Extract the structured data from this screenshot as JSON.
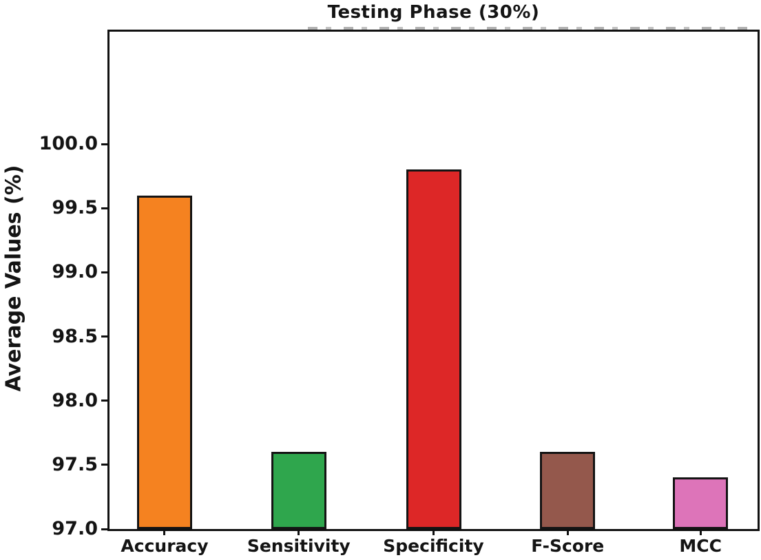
{
  "chart_data": {
    "type": "bar",
    "title": "Testing Phase (30%)",
    "ylabel": "Average Values (%)",
    "xlabel": "",
    "categories": [
      "Accuracy",
      "Sensitivity",
      "Specificity",
      "F-Score",
      "MCC"
    ],
    "values": [
      99.6,
      97.6,
      99.8,
      97.6,
      97.4
    ],
    "bar_colors": [
      "#F58220",
      "#2FA64D",
      "#DD2727",
      "#94584C",
      "#DD74B9"
    ],
    "bar_edge_color": "#141414",
    "ylim": [
      97.0,
      100.875
    ],
    "yticks": [
      97.0,
      97.5,
      98.0,
      98.5,
      99.0,
      99.5,
      100.0
    ],
    "ytick_labels": [
      "97.0",
      "97.5",
      "98.0",
      "98.5",
      "99.0",
      "99.5",
      "100.0"
    ],
    "grid": false,
    "legend": "none",
    "frame_color": "#111111",
    "text_color": "#141414"
  }
}
